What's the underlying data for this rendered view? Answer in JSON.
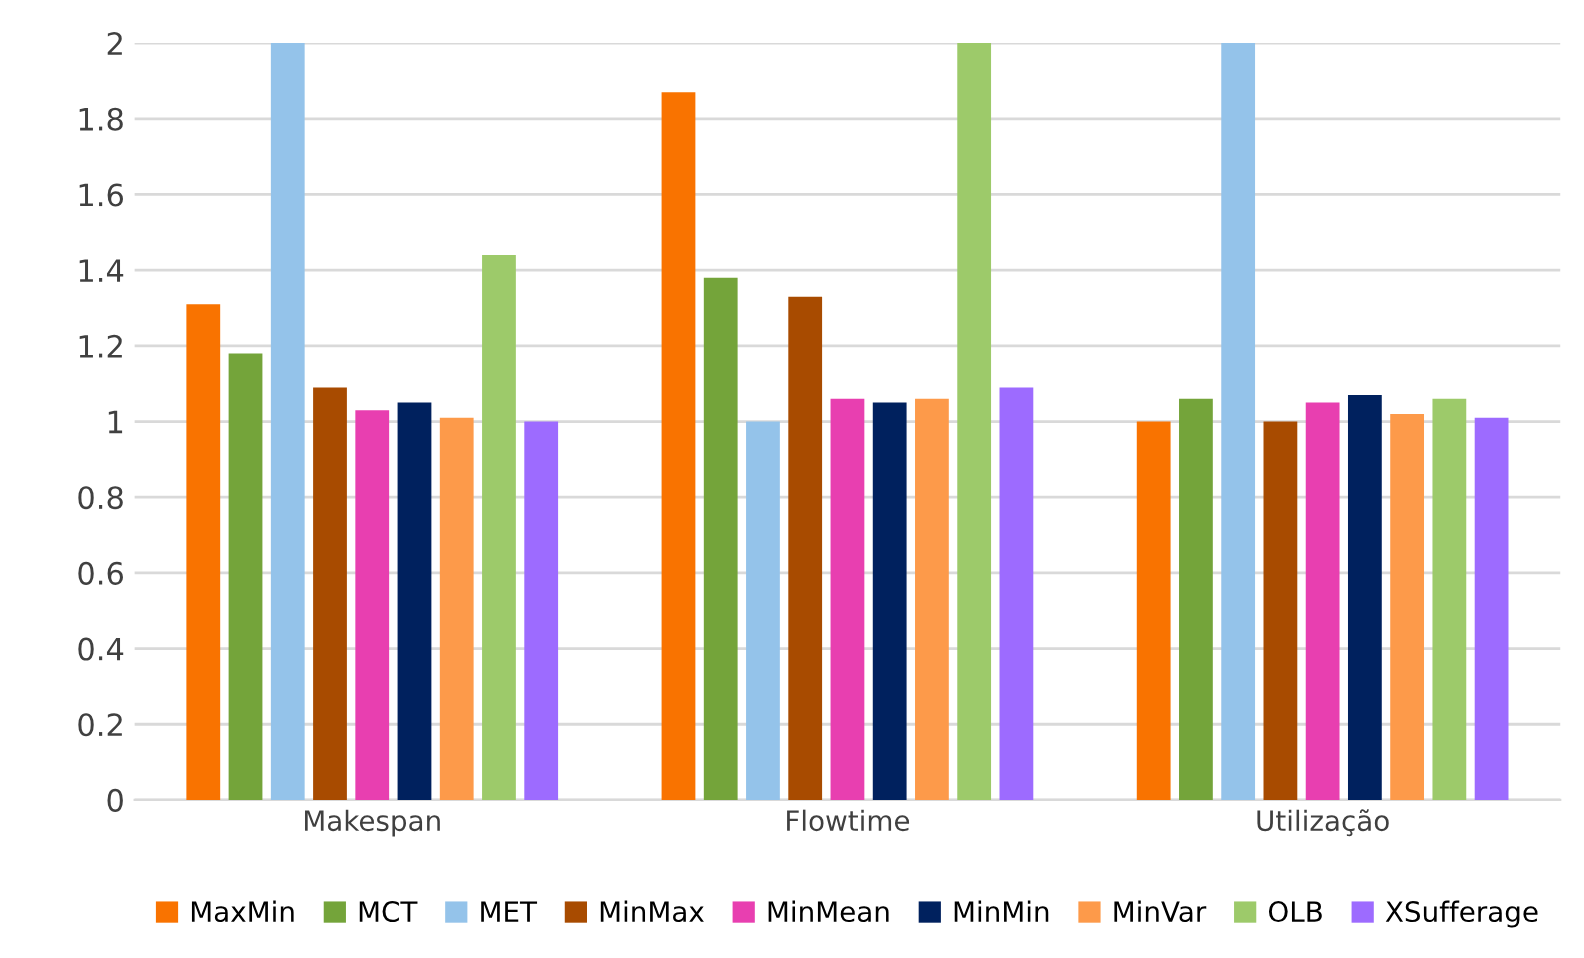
{
  "chart_data": {
    "type": "bar",
    "categories": [
      "Makespan",
      "Flowtime",
      "Utilização"
    ],
    "ylim": [
      0,
      2
    ],
    "yticks": [
      0,
      0.2,
      0.4,
      0.6,
      0.8,
      1,
      1.2,
      1.4,
      1.6,
      1.8,
      2
    ],
    "grid": "y",
    "legend": "bottom",
    "series": [
      {
        "name": "MaxMin",
        "color": "#f97300",
        "values": [
          1.31,
          1.87,
          1.0
        ]
      },
      {
        "name": "MCT",
        "color": "#74a43a",
        "values": [
          1.18,
          1.38,
          1.06
        ]
      },
      {
        "name": "MET",
        "color": "#94c3ea",
        "values": [
          2.0,
          1.0,
          2.0
        ]
      },
      {
        "name": "MinMax",
        "color": "#a84b00",
        "values": [
          1.09,
          1.33,
          1.0
        ]
      },
      {
        "name": "MinMean",
        "color": "#e83fb0",
        "values": [
          1.03,
          1.06,
          1.05
        ]
      },
      {
        "name": "MinMin",
        "color": "#00215e",
        "values": [
          1.05,
          1.05,
          1.07
        ]
      },
      {
        "name": "MinVar",
        "color": "#fd9a4a",
        "values": [
          1.01,
          1.06,
          1.02
        ]
      },
      {
        "name": "OLB",
        "color": "#9dca6a",
        "values": [
          1.44,
          2.0,
          1.06
        ]
      },
      {
        "name": "XSufferage",
        "color": "#9d6bff",
        "values": [
          1.0,
          1.09,
          1.01
        ]
      }
    ]
  }
}
